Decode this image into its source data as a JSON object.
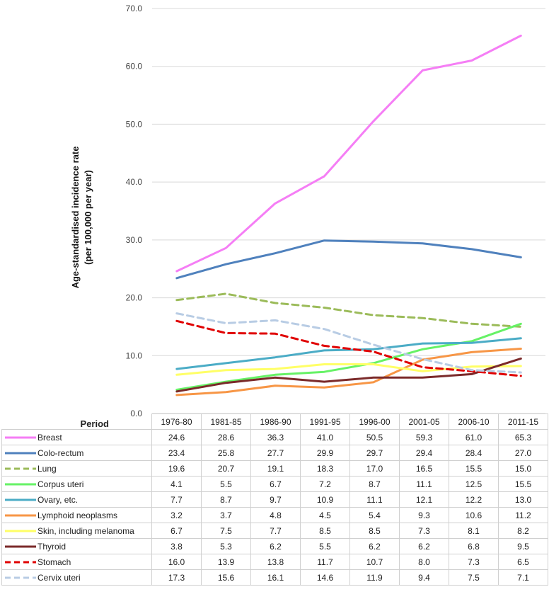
{
  "chart_data": {
    "type": "line",
    "ylabel_line1": "Age-standardised incidence rate",
    "ylabel_line2": "(per 100,000 per year)",
    "period_label": "Period",
    "ylim": [
      0,
      70
    ],
    "yticks": [
      "0.0",
      "10.0",
      "20.0",
      "30.0",
      "40.0",
      "50.0",
      "60.0",
      "70.0"
    ],
    "grid": true,
    "categories": [
      "1976-80",
      "1981-85",
      "1986-90",
      "1991-95",
      "1996-00",
      "2001-05",
      "2006-10",
      "2011-15"
    ],
    "series": [
      {
        "name": "Breast",
        "color": "#f57ef5",
        "dashed": false,
        "values": [
          24.6,
          28.6,
          36.3,
          41.0,
          50.5,
          59.3,
          61.0,
          65.3
        ]
      },
      {
        "name": "Colo-rectum",
        "color": "#4f81bd",
        "dashed": false,
        "values": [
          23.4,
          25.8,
          27.7,
          29.9,
          29.7,
          29.4,
          28.4,
          27.0
        ]
      },
      {
        "name": "Lung",
        "color": "#9bbb59",
        "dashed": true,
        "values": [
          19.6,
          20.7,
          19.1,
          18.3,
          17.0,
          16.5,
          15.5,
          15.0
        ]
      },
      {
        "name": "Corpus uteri",
        "color": "#66f266",
        "dashed": false,
        "values": [
          4.1,
          5.5,
          6.7,
          7.2,
          8.7,
          11.1,
          12.5,
          15.5
        ]
      },
      {
        "name": "Ovary, etc.",
        "color": "#4bacc6",
        "dashed": false,
        "values": [
          7.7,
          8.7,
          9.7,
          10.9,
          11.1,
          12.1,
          12.2,
          13.0
        ]
      },
      {
        "name": "Lymphoid neoplasms",
        "color": "#f79646",
        "dashed": false,
        "values": [
          3.2,
          3.7,
          4.8,
          4.5,
          5.4,
          9.3,
          10.6,
          11.2
        ]
      },
      {
        "name": "Skin, including melanoma",
        "color": "#ffff66",
        "dashed": false,
        "values": [
          6.7,
          7.5,
          7.7,
          8.5,
          8.5,
          7.3,
          8.1,
          8.2
        ]
      },
      {
        "name": "Thyroid",
        "color": "#7b2a2a",
        "dashed": false,
        "values": [
          3.8,
          5.3,
          6.2,
          5.5,
          6.2,
          6.2,
          6.8,
          9.5
        ]
      },
      {
        "name": "Stomach",
        "color": "#e00000",
        "dashed": true,
        "values": [
          16.0,
          13.9,
          13.8,
          11.7,
          10.7,
          8.0,
          7.3,
          6.5
        ]
      },
      {
        "name": "Cervix uteri",
        "color": "#b8cce4",
        "dashed": true,
        "values": [
          17.3,
          15.6,
          16.1,
          14.6,
          11.9,
          9.4,
          7.5,
          7.1
        ]
      }
    ]
  }
}
